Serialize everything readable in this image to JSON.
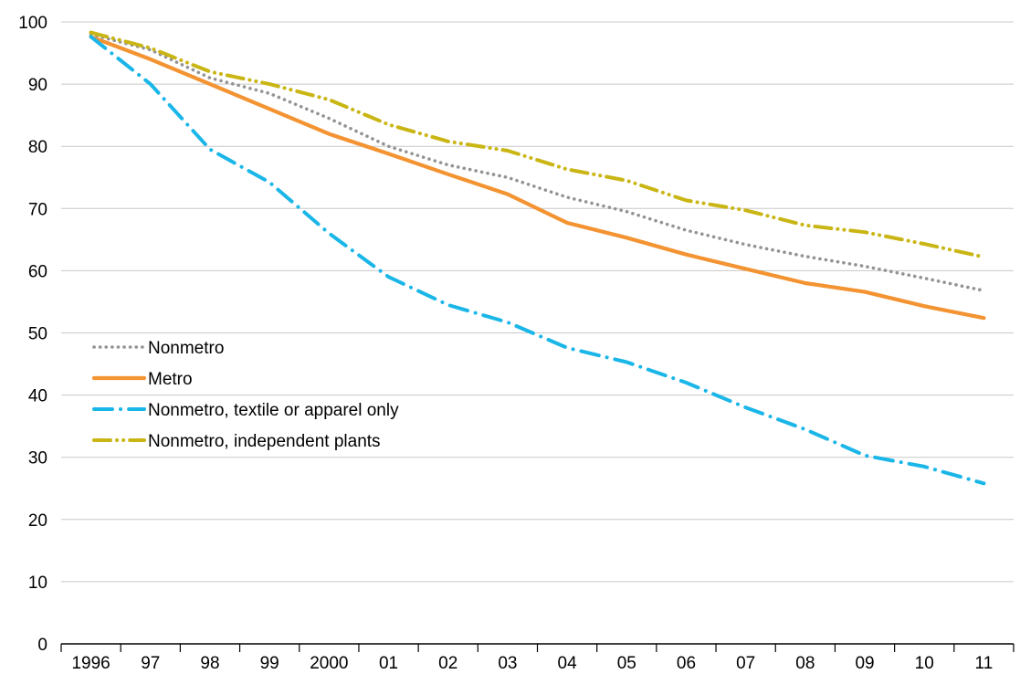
{
  "chart_data": {
    "type": "line",
    "categories": [
      "1996",
      "97",
      "98",
      "99",
      "2000",
      "01",
      "02",
      "03",
      "04",
      "05",
      "06",
      "07",
      "08",
      "09",
      "10",
      "11"
    ],
    "ylim": [
      0,
      100
    ],
    "yticks": [
      0,
      10,
      20,
      30,
      40,
      50,
      60,
      70,
      80,
      90,
      100
    ],
    "grid": true,
    "legend_position": "left-center",
    "series": [
      {
        "name": "Nonmetro",
        "color": "#939393",
        "style": "dotted",
        "values": [
          98.0,
          95.5,
          91.0,
          88.5,
          84.5,
          80.0,
          77.0,
          75.0,
          71.8,
          69.5,
          66.5,
          64.2,
          62.3,
          60.7,
          58.8,
          56.8
        ]
      },
      {
        "name": "Metro",
        "color": "#f39331",
        "style": "solid",
        "values": [
          97.6,
          94.0,
          90.0,
          86.0,
          82.0,
          78.8,
          75.5,
          72.3,
          67.7,
          65.3,
          62.6,
          60.3,
          58.0,
          56.6,
          54.3,
          52.4
        ]
      },
      {
        "name": "Nonmetro, textile or apparel only",
        "color": "#1ab6e8",
        "style": "dash-dot",
        "values": [
          97.6,
          90.0,
          79.5,
          74.2,
          66.0,
          59.0,
          54.5,
          51.7,
          47.6,
          45.3,
          42.0,
          38.0,
          34.5,
          30.3,
          28.5,
          25.8
        ]
      },
      {
        "name": "Nonmetro, independent plants",
        "color": "#c9b513",
        "style": "dash-dot-dot",
        "values": [
          98.3,
          95.8,
          92.0,
          90.0,
          87.5,
          83.5,
          80.8,
          79.3,
          76.3,
          74.5,
          71.3,
          69.7,
          67.3,
          66.2,
          64.3,
          62.2
        ]
      }
    ]
  }
}
